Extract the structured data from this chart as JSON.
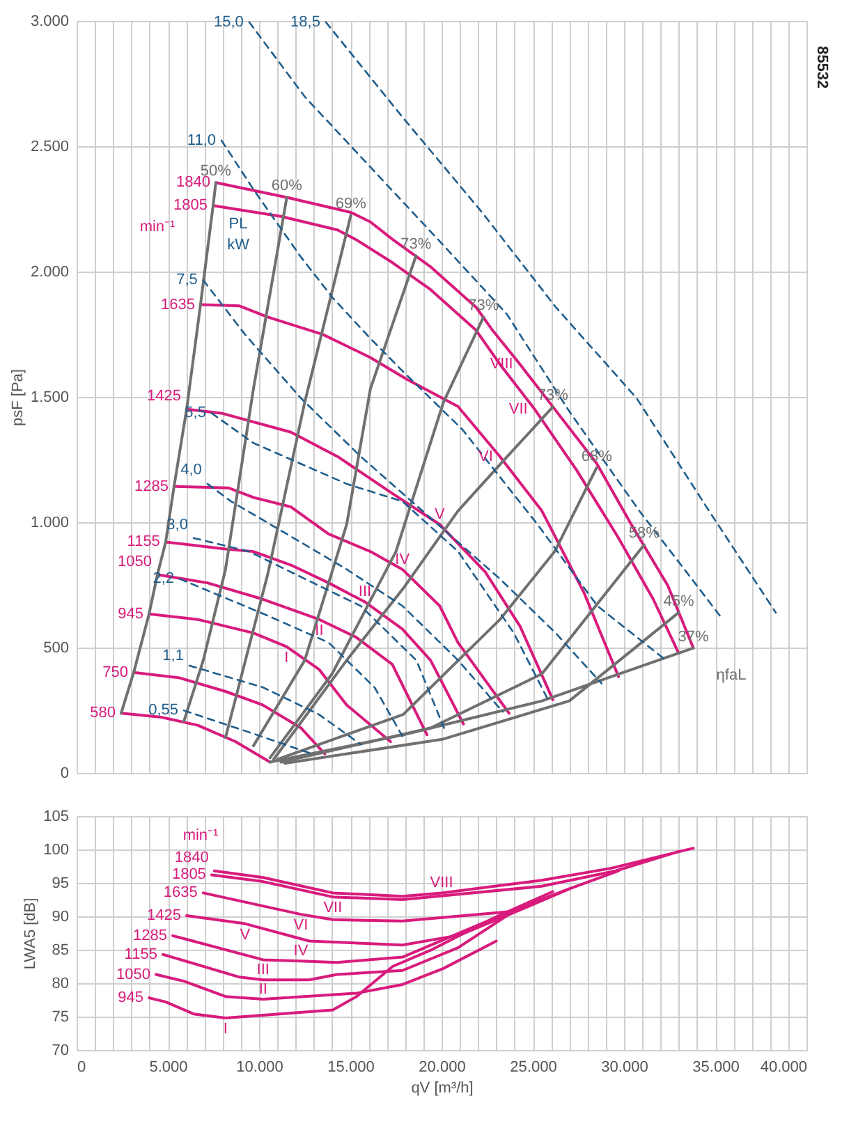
{
  "chart_data": [
    {
      "type": "line",
      "ylabel": "psF [Pa]",
      "xlim": [
        0,
        40000
      ],
      "ylim": [
        0,
        3000
      ],
      "grid": true,
      "tick_labels": "y",
      "xticks": [
        {
          "value": 0,
          "label": null
        },
        {
          "value": 1000,
          "label": null
        },
        {
          "value": 2000,
          "label": null
        },
        {
          "value": 3000,
          "label": null
        },
        {
          "value": 4000,
          "label": null
        },
        {
          "value": 5000,
          "label": null
        },
        {
          "value": 6000,
          "label": null
        },
        {
          "value": 7000,
          "label": null
        },
        {
          "value": 8000,
          "label": null
        },
        {
          "value": 9000,
          "label": null
        },
        {
          "value": 10000,
          "label": null
        },
        {
          "value": 11000,
          "label": null
        },
        {
          "value": 12000,
          "label": null
        },
        {
          "value": 13000,
          "label": null
        },
        {
          "value": 14000,
          "label": null
        },
        {
          "value": 15000,
          "label": null
        },
        {
          "value": 16000,
          "label": null
        },
        {
          "value": 17000,
          "label": null
        },
        {
          "value": 18000,
          "label": null
        },
        {
          "value": 19000,
          "label": null
        },
        {
          "value": 20000,
          "label": null
        },
        {
          "value": 21000,
          "label": null
        },
        {
          "value": 22000,
          "label": null
        },
        {
          "value": 23000,
          "label": null
        },
        {
          "value": 24000,
          "label": null
        },
        {
          "value": 25000,
          "label": null
        },
        {
          "value": 26000,
          "label": null
        },
        {
          "value": 27000,
          "label": null
        },
        {
          "value": 28000,
          "label": null
        },
        {
          "value": 29000,
          "label": null
        },
        {
          "value": 30000,
          "label": null
        },
        {
          "value": 31000,
          "label": null
        },
        {
          "value": 32000,
          "label": null
        },
        {
          "value": 33000,
          "label": null
        },
        {
          "value": 34000,
          "label": null
        },
        {
          "value": 35000,
          "label": null
        },
        {
          "value": 36000,
          "label": null
        },
        {
          "value": 37000,
          "label": null
        },
        {
          "value": 38000,
          "label": null
        },
        {
          "value": 39000,
          "label": null
        },
        {
          "value": 40000,
          "label": null
        }
      ],
      "yticks": [
        0,
        500,
        {
          "value": 1000,
          "label": "1.000"
        },
        {
          "value": 1500,
          "label": "1.500"
        },
        {
          "value": 2000,
          "label": "2.000"
        },
        {
          "value": 2500,
          "label": "2.500"
        },
        {
          "value": 3000,
          "label": "3.000"
        }
      ],
      "series": [
        {
          "name": "1840",
          "color": "#d81b7c",
          "x": [
            7630,
            11520,
            15030,
            16100,
            17320,
            19380,
            21900,
            22800,
            24300,
            26200,
            28500,
            30400,
            32400,
            33800
          ],
          "values": [
            2355,
            2296,
            2236,
            2198,
            2128,
            2020,
            1857,
            1765,
            1630,
            1451,
            1235,
            991,
            747,
            498
          ]
        },
        {
          "name": "1805",
          "color": "#d81b7c",
          "x": [
            7480,
            11200,
            14300,
            15300,
            17300,
            19400,
            21900,
            23200,
            25100,
            27400,
            29700,
            31600,
            33000
          ],
          "values": [
            2263,
            2220,
            2166,
            2128,
            2036,
            1928,
            1765,
            1630,
            1451,
            1208,
            937,
            693,
            477
          ]
        },
        {
          "name": "1635",
          "color": "#d81b7c",
          "x": [
            6790,
            8930,
            10450,
            13500,
            16100,
            18100,
            20900,
            23200,
            25500,
            27800,
            29700
          ],
          "values": [
            1868,
            1863,
            1819,
            1749,
            1657,
            1570,
            1462,
            1262,
            1045,
            720,
            384
          ]
        },
        {
          "name": "1425",
          "color": "#d81b7c",
          "x": [
            6030,
            7940,
            11750,
            14300,
            17300,
            19900,
            22400,
            24300,
            26100
          ],
          "values": [
            1451,
            1435,
            1359,
            1262,
            1115,
            991,
            801,
            585,
            292
          ]
        },
        {
          "name": "1285",
          "color": "#d81b7c",
          "x": [
            5340,
            8320,
            9690,
            11750,
            13810,
            16100,
            17850,
            19900,
            20900,
            23700
          ],
          "values": [
            1143,
            1137,
            1099,
            1061,
            953,
            883,
            812,
            666,
            520,
            238
          ]
        },
        {
          "name": "1155",
          "color": "#d81b7c",
          "x": [
            4880,
            8160,
            9690,
            11750,
            13810,
            15800,
            17850,
            19400,
            21200
          ],
          "values": [
            921,
            893,
            883,
            829,
            758,
            682,
            574,
            449,
            195
          ]
        },
        {
          "name": "1050",
          "color": "#d81b7c",
          "x": [
            4430,
            7170,
            10200,
            13300,
            15300,
            17300,
            19200
          ],
          "values": [
            791,
            758,
            693,
            612,
            542,
            433,
            152
          ]
        },
        {
          "name": "945",
          "color": "#d81b7c",
          "x": [
            3970,
            6640,
            9690,
            11500,
            13300,
            14800,
            17200
          ],
          "values": [
            634,
            612,
            558,
            504,
            412,
            271,
            125
          ]
        },
        {
          "name": "750",
          "color": "#d81b7c",
          "x": [
            3130,
            5650,
            8160,
            10200,
            12300,
            13600
          ],
          "values": [
            401,
            379,
            325,
            271,
            179,
            76
          ]
        },
        {
          "name": "580",
          "color": "#d81b7c",
          "x": [
            2440,
            4650,
            6640,
            8700,
            10600
          ],
          "values": [
            238,
            222,
            190,
            125,
            43
          ]
        },
        {
          "name": "50%",
          "color": "#707070",
          "x": [
            2440,
            3130,
            3970,
            4430,
            4880,
            5340,
            6030,
            6790,
            7480,
            7630
          ],
          "values": [
            238,
            401,
            634,
            791,
            921,
            1143,
            1451,
            1868,
            2263,
            2355
          ]
        },
        {
          "name": "60%",
          "color": "#707070",
          "x": [
            5880,
            6940,
            8160,
            9690,
            11520
          ],
          "values": [
            206,
            449,
            812,
            1532,
            2296
          ]
        },
        {
          "name": "69%",
          "color": "#707070",
          "x": [
            8160,
            10500,
            12500,
            15030
          ],
          "values": [
            141,
            800,
            1478,
            2225
          ]
        },
        {
          "name": "73%",
          "color": "#707070",
          "x": [
            9690,
            12500,
            14800,
            16100,
            18600
          ],
          "values": [
            108,
            449,
            991,
            1532,
            2063
          ]
        },
        {
          "name": "73%",
          "color": "#707070",
          "x": [
            10600,
            14000,
            17500,
            20100,
            22300
          ],
          "values": [
            60,
            395,
            883,
            1478,
            1819
          ]
        },
        {
          "name": "73%",
          "color": "#707070",
          "x": [
            10800,
            14800,
            17900,
            20900,
            23600,
            26100
          ],
          "values": [
            54,
            449,
            736,
            1045,
            1262,
            1460
          ]
        },
        {
          "name": "68%",
          "color": "#707070",
          "x": [
            11000,
            17900,
            23200,
            26200,
            28500
          ],
          "values": [
            54,
            233,
            612,
            883,
            1218
          ]
        },
        {
          "name": "58%",
          "color": "#707070",
          "x": [
            11200,
            19400,
            25500,
            31100
          ],
          "values": [
            43,
            179,
            395,
            910
          ]
        },
        {
          "name": "45%",
          "color": "#707070",
          "x": [
            11400,
            20100,
            27000,
            33000
          ],
          "values": [
            38,
            135,
            287,
            640
          ]
        },
        {
          "name": "37%",
          "color": "#707070",
          "x": [
            10600,
            17900,
            25500,
            33800
          ],
          "values": [
            43,
            152,
            287,
            498
          ]
        },
        {
          "name": "18,5",
          "color": "#1f5d8c",
          "line_style": "dashed",
          "x": [
            13660,
            17860,
            22210,
            26260,
            30690,
            34660,
            38320
          ],
          "values": [
            2995,
            2616,
            2237,
            1858,
            1495,
            1045,
            639
          ]
        },
        {
          "name": "15,0",
          "color": "#1f5d8c",
          "line_style": "dashed",
          "x": [
            9460,
            12510,
            16330,
            20150,
            23580,
            27020,
            30840,
            34110,
            35410
          ],
          "values": [
            2995,
            2697,
            2399,
            2101,
            1830,
            1440,
            1045,
            736,
            612
          ]
        },
        {
          "name": "11,0",
          "color": "#1f5d8c",
          "line_style": "dashed",
          "x": [
            7940,
            9690,
            12290,
            14040,
            16100,
            17860,
            21140,
            25260,
            28540,
            32200
          ],
          "values": [
            2523,
            2328,
            2058,
            1895,
            1733,
            1603,
            1370,
            991,
            666,
            455
          ]
        },
        {
          "name": "7,5",
          "color": "#1f5d8c",
          "line_style": "dashed",
          "x": [
            6940,
            9230,
            12290,
            15570,
            19380,
            23200,
            26250,
            28770
          ],
          "values": [
            1966,
            1749,
            1495,
            1262,
            1018,
            774,
            558,
            357
          ]
        },
        {
          "name": "5,5",
          "color": "#1f5d8c",
          "line_style": "dashed",
          "x": [
            7400,
            9690,
            14800,
            17860,
            20910,
            23960,
            25870
          ],
          "values": [
            1435,
            1316,
            1153,
            1083,
            883,
            558,
            287
          ]
        },
        {
          "name": "4,0",
          "color": "#1f5d8c",
          "line_style": "dashed",
          "x": [
            7170,
            8470,
            11520,
            14800,
            17860,
            20910,
            23350
          ],
          "values": [
            1153,
            1083,
            953,
            812,
            666,
            449,
            244
          ]
        },
        {
          "name": "3,0",
          "color": "#1f5d8c",
          "line_style": "dashed",
          "x": [
            6410,
            9460,
            12510,
            15570,
            18620,
            20140
          ],
          "values": [
            937,
            883,
            774,
            666,
            449,
            179
          ]
        },
        {
          "name": "2,2",
          "color": "#1f5d8c",
          "line_style": "dashed",
          "x": [
            5650,
            10450,
            13810,
            16330,
            17860
          ],
          "values": [
            774,
            628,
            520,
            341,
            146
          ]
        },
        {
          "name": "1,1",
          "color": "#1f5d8c",
          "line_style": "dashed",
          "x": [
            6180,
            10220,
            13280,
            15570
          ],
          "values": [
            428,
            341,
            233,
            114
          ]
        },
        {
          "name": "0,55",
          "color": "#1f5d8c",
          "line_style": "dashed",
          "x": [
            5880,
            9460,
            12900
          ],
          "values": [
            249,
            162,
            76
          ]
        }
      ],
      "annotations": [
        "85532",
        "min⁻¹",
        "PL",
        "kW",
        "ηfaL",
        {
          "text": "VIII",
          "x": 24300,
          "y": 1630
        },
        {
          "text": "VII",
          "x": 25100,
          "y": 1451
        },
        {
          "text": "VI",
          "x": 23200,
          "y": 1262
        },
        {
          "text": "V",
          "x": 19900,
          "y": 991
        },
        {
          "text": "IV",
          "x": 17850,
          "y": 812
        },
        {
          "text": "III",
          "x": 15800,
          "y": 682
        },
        {
          "text": "II",
          "x": 13300,
          "y": 612
        },
        {
          "text": "I",
          "x": 11500,
          "y": 504
        }
      ]
    },
    {
      "type": "line",
      "xlabel": "qV [m³/h]",
      "ylabel": "LWA5 [dB]",
      "xlim": [
        0,
        40000
      ],
      "ylim": [
        70,
        105
      ],
      "grid": true,
      "xticks": [
        0,
        {
          "value": 1000,
          "label": null
        },
        {
          "value": 2000,
          "label": null
        },
        {
          "value": 3000,
          "label": null
        },
        {
          "value": 4000,
          "label": null
        },
        {
          "value": 5000,
          "label": "5.000"
        },
        {
          "value": 6000,
          "label": null
        },
        {
          "value": 7000,
          "label": null
        },
        {
          "value": 8000,
          "label": null
        },
        {
          "value": 9000,
          "label": null
        },
        {
          "value": 10000,
          "label": "10.000"
        },
        {
          "value": 11000,
          "label": null
        },
        {
          "value": 12000,
          "label": null
        },
        {
          "value": 13000,
          "label": null
        },
        {
          "value": 14000,
          "label": null
        },
        {
          "value": 15000,
          "label": "15.000"
        },
        {
          "value": 16000,
          "label": null
        },
        {
          "value": 17000,
          "label": null
        },
        {
          "value": 18000,
          "label": null
        },
        {
          "value": 19000,
          "label": null
        },
        {
          "value": 20000,
          "label": "20.000"
        },
        {
          "value": 21000,
          "label": null
        },
        {
          "value": 22000,
          "label": null
        },
        {
          "value": 23000,
          "label": null
        },
        {
          "value": 24000,
          "label": null
        },
        {
          "value": 25000,
          "label": "25.000"
        },
        {
          "value": 26000,
          "label": null
        },
        {
          "value": 27000,
          "label": null
        },
        {
          "value": 28000,
          "label": null
        },
        {
          "value": 29000,
          "label": null
        },
        {
          "value": 30000,
          "label": "30.000"
        },
        {
          "value": 31000,
          "label": null
        },
        {
          "value": 32000,
          "label": null
        },
        {
          "value": 33000,
          "label": null
        },
        {
          "value": 34000,
          "label": null
        },
        {
          "value": 35000,
          "label": "35.000"
        },
        {
          "value": 36000,
          "label": null
        },
        {
          "value": 37000,
          "label": null
        },
        {
          "value": 38000,
          "label": null
        },
        {
          "value": 39000,
          "label": null
        },
        {
          "value": 40000,
          "label": "40.000"
        }
      ],
      "yticks": [
        70,
        75,
        80,
        85,
        90,
        95,
        100,
        105
      ],
      "series": [
        {
          "name": "1840",
          "color": "#d81b7c",
          "x": [
            7550,
            10220,
            14040,
            17860,
            20000,
            25490,
            29300,
            33800
          ],
          "values": [
            96.8,
            95.8,
            93.5,
            93.0,
            93.5,
            95.4,
            97.2,
            100.2
          ]
        },
        {
          "name": "1805",
          "color": "#d81b7c",
          "x": [
            7400,
            10220,
            14040,
            17860,
            25490,
            29540,
            33000
          ],
          "values": [
            96.2,
            95.2,
            92.9,
            92.5,
            94.5,
            96.8,
            99.7
          ]
        },
        {
          "name": "1635",
          "color": "#d81b7c",
          "x": [
            6940,
            12290,
            14040,
            17860,
            23740,
            26780,
            29700
          ],
          "values": [
            93.5,
            90.3,
            89.5,
            89.3,
            90.7,
            93.9,
            96.8
          ]
        },
        {
          "name": "1425",
          "color": "#d81b7c",
          "x": [
            6030,
            9230,
            12750,
            17860,
            21000,
            24000,
            27000
          ],
          "values": [
            90.1,
            88.9,
            86.3,
            85.7,
            87.2,
            90.6,
            94.1
          ]
        },
        {
          "name": "1285",
          "color": "#d81b7c",
          "x": [
            5270,
            10220,
            12290,
            14270,
            17860,
            21140,
            24000
          ],
          "values": [
            87.1,
            83.5,
            83.3,
            83.1,
            83.9,
            87.7,
            91.0
          ]
        },
        {
          "name": "1155",
          "color": "#d81b7c",
          "x": [
            4730,
            8930,
            10220,
            12750,
            14270,
            17860,
            20900,
            23700
          ],
          "values": [
            84.3,
            80.9,
            80.5,
            80.5,
            81.3,
            81.9,
            85.3,
            90.3
          ]
        },
        {
          "name": "1050",
          "color": "#d81b7c",
          "x": [
            4350,
            5880,
            8160,
            10220,
            15340,
            17860,
            20100,
            23000
          ],
          "values": [
            81.3,
            80.3,
            78.0,
            77.6,
            78.5,
            79.8,
            82.2,
            86.3
          ]
        },
        {
          "name": "945",
          "color": "#d81b7c",
          "x": [
            3970,
            4880,
            6410,
            8160,
            14040,
            15340,
            17320,
            19380,
            22970,
            26100
          ],
          "values": [
            77.8,
            77.2,
            75.4,
            74.8,
            76.0,
            78.0,
            82.5,
            84.9,
            89.9,
            93.7
          ]
        }
      ],
      "annotations": [
        "min⁻¹",
        {
          "text": "VIII",
          "x": 20000,
          "y": 93.5
        },
        {
          "text": "VII",
          "x": 14040,
          "y": 92.9
        },
        {
          "text": "VI",
          "x": 12290,
          "y": 90.3
        },
        {
          "text": "V",
          "x": 9230,
          "y": 88.9
        },
        {
          "text": "IV",
          "x": 12290,
          "y": 83.3
        },
        {
          "text": "III",
          "x": 10220,
          "y": 80.5
        },
        {
          "text": "II",
          "x": 10220,
          "y": 77.6
        },
        {
          "text": "I",
          "x": 8160,
          "y": 74.8
        }
      ]
    }
  ]
}
